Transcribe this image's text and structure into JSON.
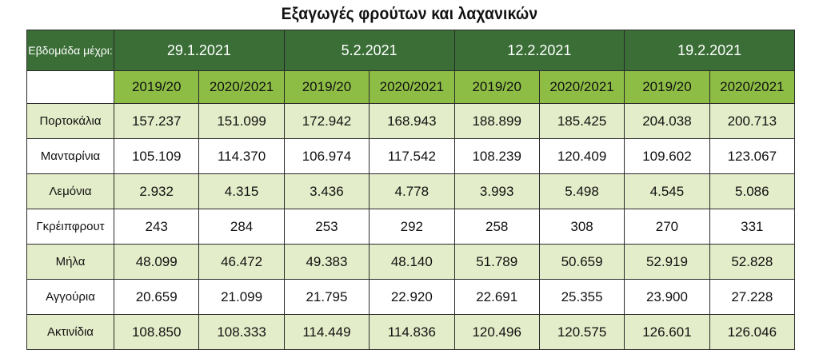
{
  "title": "Εξαγωγές φρούτων και λαχανικών",
  "header": {
    "week_label": "Εβδομάδα μέχρι:",
    "dates": [
      "29.1.2021",
      "5.2.2021",
      "12.2.2021",
      "19.2.2021"
    ],
    "seasons": [
      "2019/20",
      "2020/2021",
      "2019/20",
      "2020/2021",
      "2019/20",
      "2020/2021",
      "2019/20",
      "2020/2021"
    ]
  },
  "colors": {
    "header_dark_green": "#3a6e36",
    "header_light_green": "#8dbd45",
    "row_band": "#e4edc9"
  },
  "rows": [
    {
      "label": "Πορτοκάλια",
      "values": [
        "157.237",
        "151.099",
        "172.942",
        "168.943",
        "188.899",
        "185.425",
        "204.038",
        "200.713"
      ]
    },
    {
      "label": "Μανταρίνια",
      "values": [
        "105.109",
        "114.370",
        "106.974",
        "117.542",
        "108.239",
        "120.409",
        "109.602",
        "123.067"
      ]
    },
    {
      "label": "Λεμόνια",
      "values": [
        "2.932",
        "4.315",
        "3.436",
        "4.778",
        "3.993",
        "5.498",
        "4.545",
        "5.086"
      ]
    },
    {
      "label": "Γκρέιπφρουτ",
      "values": [
        "243",
        "284",
        "253",
        "292",
        "258",
        "308",
        "270",
        "331"
      ]
    },
    {
      "label": "Μήλα",
      "values": [
        "48.099",
        "46.472",
        "49.383",
        "48.140",
        "51.789",
        "50.659",
        "52.919",
        "52.828"
      ]
    },
    {
      "label": "Αγγούρια",
      "values": [
        "20.659",
        "21.099",
        "21.795",
        "22.920",
        "22.691",
        "25.355",
        "23.900",
        "27.228"
      ]
    },
    {
      "label": "Ακτινίδια",
      "values": [
        "108.850",
        "108.333",
        "114.449",
        "114.836",
        "120.496",
        "120.575",
        "126.601",
        "126.046"
      ]
    }
  ]
}
